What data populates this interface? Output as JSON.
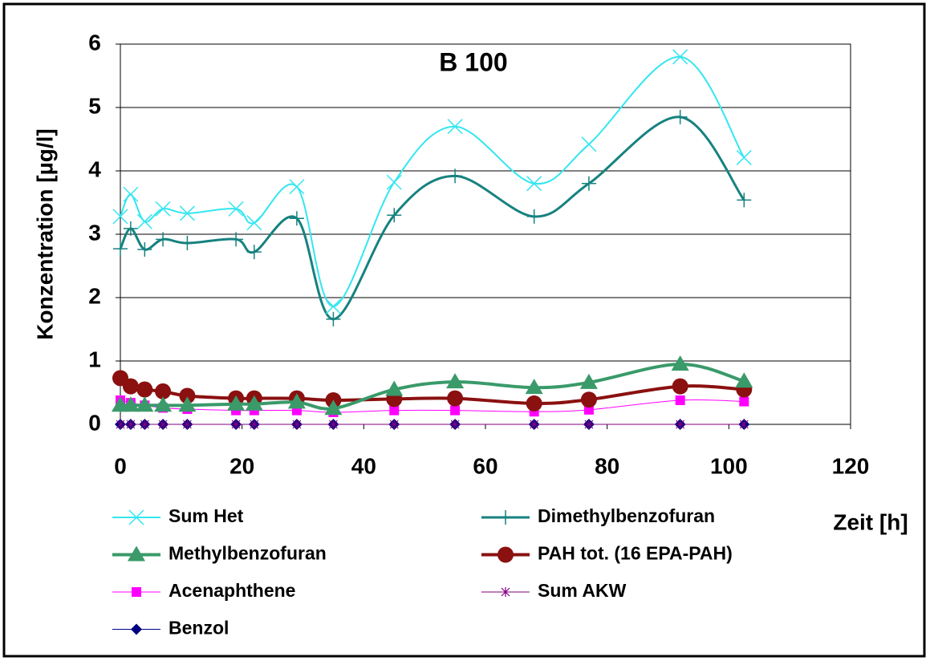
{
  "chart_data": {
    "type": "line",
    "title": "B 100",
    "y_label": "Konzentration [µg/l]",
    "x_label": "Zeit [h]",
    "x": [
      0,
      1.7,
      4,
      7,
      11,
      19,
      22,
      29,
      35,
      45,
      55,
      68,
      77,
      92,
      102.5
    ],
    "xlim": [
      0,
      120
    ],
    "xticks": [
      0,
      20,
      40,
      60,
      80,
      100,
      120
    ],
    "ylim": [
      0,
      6
    ],
    "yticks": [
      0,
      1,
      2,
      3,
      4,
      5,
      6
    ],
    "grid": true,
    "smooth": true,
    "series": [
      {
        "name": "Sum Het",
        "color": "#33e6f0",
        "marker": "x",
        "values": [
          3.28,
          3.63,
          3.2,
          3.4,
          3.33,
          3.4,
          3.18,
          3.75,
          1.86,
          3.82,
          4.7,
          3.8,
          4.42,
          5.8,
          4.21
        ]
      },
      {
        "name": "Dimethylbenzofuran",
        "color": "#16827f",
        "marker": "plus",
        "values": [
          2.77,
          3.09,
          2.76,
          2.92,
          2.86,
          2.92,
          2.72,
          3.25,
          1.66,
          3.3,
          3.92,
          3.28,
          3.8,
          4.85,
          3.54
        ]
      },
      {
        "name": "Methylbenzofuran",
        "color": "#3a9a6a",
        "marker": "triangle",
        "values": [
          0.3,
          0.3,
          0.3,
          0.3,
          0.3,
          0.32,
          0.32,
          0.35,
          0.25,
          0.55,
          0.67,
          0.58,
          0.66,
          0.95,
          0.68
        ]
      },
      {
        "name": "PAH tot. (16 EPA-PAH)",
        "color": "#8b1010",
        "marker": "circle",
        "values": [
          0.73,
          0.6,
          0.55,
          0.52,
          0.45,
          0.41,
          0.41,
          0.41,
          0.38,
          0.4,
          0.41,
          0.33,
          0.39,
          0.6,
          0.55
        ]
      },
      {
        "name": "Acenaphthene",
        "color": "#ff00ff",
        "marker": "square",
        "values": [
          0.38,
          0.34,
          0.3,
          0.26,
          0.24,
          0.22,
          0.22,
          0.22,
          0.19,
          0.22,
          0.22,
          0.2,
          0.23,
          0.38,
          0.36
        ]
      },
      {
        "name": "Sum AKW",
        "color": "#800080",
        "marker": "asterisk",
        "values": [
          0,
          0,
          0,
          0,
          0,
          0,
          0,
          0,
          0,
          0,
          0,
          0,
          0,
          0,
          0
        ]
      },
      {
        "name": "Benzol",
        "color": "#000080",
        "marker": "diamond",
        "values": [
          0,
          0,
          0,
          0,
          0,
          0,
          0,
          0,
          0,
          0,
          0,
          0,
          0,
          0,
          0
        ]
      }
    ]
  }
}
